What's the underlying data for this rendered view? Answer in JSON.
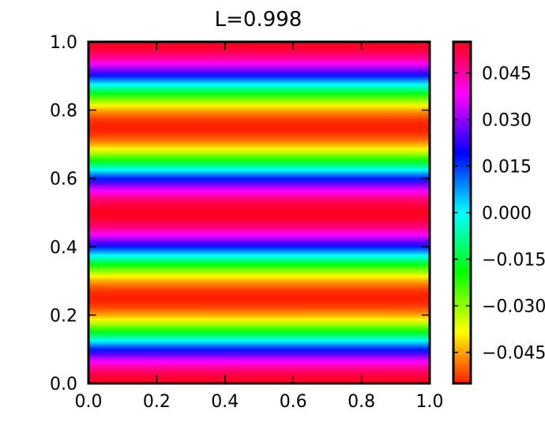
{
  "chart_data": {
    "type": "heatmap",
    "title": "L=0.998",
    "xlabel": "",
    "ylabel": "",
    "xlim": [
      0.0,
      1.0
    ],
    "ylim": [
      0.0,
      1.0
    ],
    "x_ticks": [
      "0.0",
      "0.2",
      "0.4",
      "0.6",
      "0.8",
      "1.0"
    ],
    "y_ticks": [
      "0.0",
      "0.2",
      "0.4",
      "0.6",
      "0.8",
      "1.0"
    ],
    "colorbar": {
      "range": [
        -0.055,
        0.055
      ],
      "ticks": [
        -0.045,
        -0.03,
        -0.015,
        0.0,
        0.015,
        0.03,
        0.045
      ],
      "tick_labels": [
        "−0.045",
        "−0.030",
        "−0.015",
        "0.000",
        "0.015",
        "0.030",
        "0.045"
      ],
      "colormap": "hsv"
    },
    "field": {
      "description_formula": "value = 0.055*cos(4*pi*(y-0.5)), constant along x",
      "y_profile_y": [
        0.0,
        0.125,
        0.25,
        0.375,
        0.5,
        0.625,
        0.75,
        0.875,
        1.0
      ],
      "y_profile_value": [
        0.055,
        0.0,
        -0.055,
        0.0,
        0.055,
        0.0,
        -0.055,
        0.0,
        0.055
      ]
    },
    "grid": false
  }
}
